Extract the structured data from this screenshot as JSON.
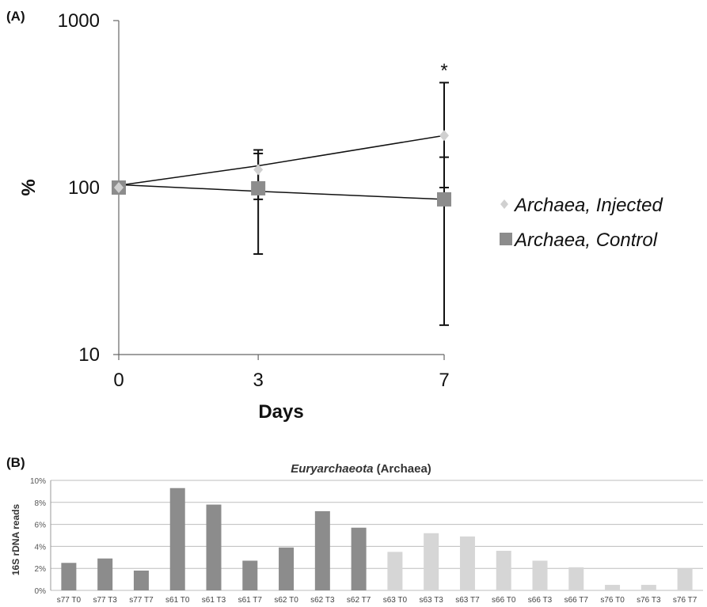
{
  "chart_data": [
    {
      "type": "line",
      "panel_label": "(A)",
      "xlabel": "Days",
      "ylabel": "%",
      "y_scale": "log",
      "ylim": [
        10,
        1000
      ],
      "y_ticks": [
        "10",
        "100",
        "1000"
      ],
      "x_ticks": [
        "0",
        "3",
        "7"
      ],
      "x": [
        0,
        3,
        7
      ],
      "series": [
        {
          "name": "Archaea, Injected",
          "marker": "diamond",
          "color": "#d0d0d0",
          "values": [
            100,
            128,
            205
          ],
          "err_upper": [
            100,
            168,
            425
          ],
          "err_lower": [
            100,
            40,
            100
          ],
          "trendline": [
            103,
            135,
            205
          ]
        },
        {
          "name": "Archaea, Control",
          "marker": "square",
          "color": "#8c8c8c",
          "values": [
            100,
            99,
            85
          ],
          "err_upper": [
            100,
            160,
            152
          ],
          "err_lower": [
            100,
            85,
            15
          ],
          "trendline": [
            104,
            95,
            85
          ]
        }
      ],
      "annotations": [
        {
          "text": "*",
          "x": 7
        }
      ],
      "legend_position": "right"
    },
    {
      "type": "bar",
      "panel_label": "(B)",
      "title_italic": "Euryarchaeota",
      "title_rest": " (Archaea)",
      "ylabel": "16S rDNA reads",
      "ylim": [
        0,
        10
      ],
      "y_ticks": [
        "0%",
        "2%",
        "4%",
        "6%",
        "8%",
        "10%"
      ],
      "grid": true,
      "categories": [
        "s77 T0",
        "s77 T3",
        "s77 T7",
        "s61 T0",
        "s61 T3",
        "s61 T7",
        "s62 T0",
        "s62 T3",
        "s62 T7",
        "s63 T0",
        "s63 T3",
        "s63 T7",
        "s66 T0",
        "s66 T3",
        "s66 T7",
        "s76 T0",
        "s76 T3",
        "s76 T7"
      ],
      "values": [
        2.5,
        2.9,
        1.8,
        9.3,
        7.8,
        2.7,
        3.9,
        7.2,
        5.7,
        3.5,
        5.2,
        4.9,
        3.6,
        2.7,
        2.1,
        0.5,
        0.5,
        2.0
      ],
      "bar_colors": [
        "#8c8c8c",
        "#8c8c8c",
        "#8c8c8c",
        "#8c8c8c",
        "#8c8c8c",
        "#8c8c8c",
        "#8c8c8c",
        "#8c8c8c",
        "#8c8c8c",
        "#d6d6d6",
        "#d6d6d6",
        "#d6d6d6",
        "#d6d6d6",
        "#d6d6d6",
        "#d6d6d6",
        "#d6d6d6",
        "#d6d6d6",
        "#d6d6d6"
      ]
    }
  ]
}
